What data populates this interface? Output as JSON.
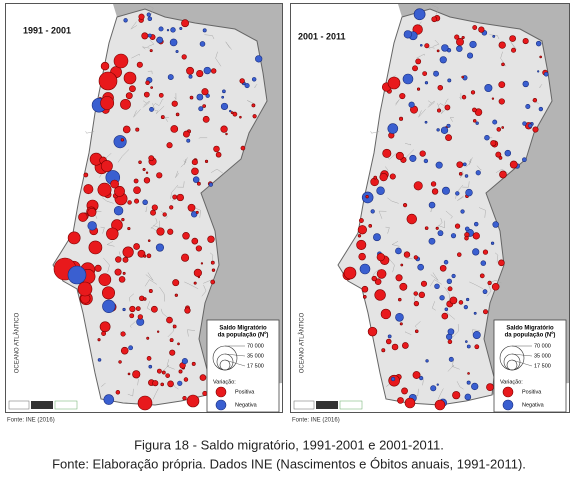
{
  "maps": [
    {
      "period": "1991 - 2001",
      "legend": {
        "title": [
          "Saldo Migratório",
          "da população (Nº)"
        ],
        "sizes": [
          "70 000",
          "35 000",
          "17 500"
        ],
        "variation": "Variação:",
        "positive": "Positiva",
        "negative": "Negativa"
      },
      "ocean": "OCEANO ATLÂNTICO",
      "source": "Fonte: INE (2016)"
    },
    {
      "period": "2001 - 2011",
      "legend": {
        "title": [
          "Saldo Migratório",
          "da população (Nº)"
        ],
        "sizes": [
          "70 000",
          "35 000",
          "17 500"
        ],
        "variation": "Variação:",
        "positive": "Positiva",
        "negative": "Negativa"
      },
      "ocean": "OCEANO ATLÂNTICO",
      "source": "Fonte: INE (2016)"
    }
  ],
  "caption": [
    "Figura 18 - Saldo migratório, 1991-2001 e 2001-2011.",
    "Fonte: Elaboração própria. Dados INE (Nascimentos e Óbitos anuais, 1991-2011)."
  ]
}
